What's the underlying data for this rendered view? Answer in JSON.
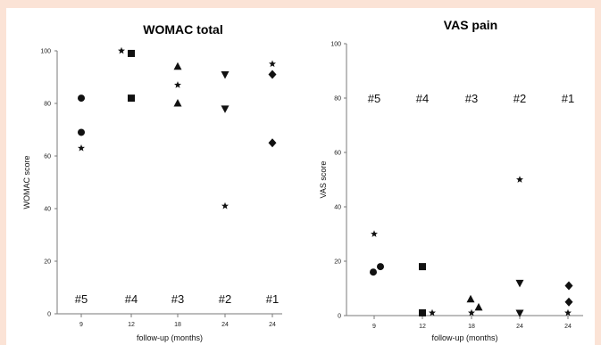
{
  "colors": {
    "border": "#fbe3d6",
    "panel": "#ffffff",
    "axis": "#7a7a7a",
    "marker": "#111111"
  },
  "chart_data": [
    {
      "type": "scatter",
      "title": "WOMAC  total",
      "xlabel": "follow-up (months)",
      "ylabel": "WOMAC score",
      "categories": [
        "9",
        "12",
        "18",
        "24",
        "24"
      ],
      "ylim": [
        0,
        100
      ],
      "yticks": [
        0,
        20,
        40,
        60,
        80,
        100
      ],
      "grid": false,
      "case_labels": [
        "#5",
        "#4",
        "#3",
        "#2",
        "#1"
      ],
      "series": [
        {
          "marker": "circle",
          "points": [
            {
              "x": "9",
              "y": 82
            },
            {
              "x": "9",
              "y": 69
            }
          ]
        },
        {
          "marker": "star",
          "points": [
            {
              "x": "9",
              "y": 63
            },
            {
              "x": "12",
              "y": 100
            },
            {
              "x": "18",
              "y": 87
            },
            {
              "x": "24",
              "y": 41
            },
            {
              "x": "24",
              "y": 95
            }
          ]
        },
        {
          "marker": "square",
          "points": [
            {
              "x": "12",
              "y": 99
            },
            {
              "x": "12",
              "y": 82
            }
          ]
        },
        {
          "marker": "triangle-up",
          "points": [
            {
              "x": "18",
              "y": 94
            },
            {
              "x": "18",
              "y": 80
            }
          ]
        },
        {
          "marker": "triangle-down",
          "points": [
            {
              "x": "24",
              "y": 91
            },
            {
              "x": "24",
              "y": 78
            }
          ]
        },
        {
          "marker": "diamond",
          "points": [
            {
              "x": "24",
              "y": 91
            },
            {
              "x": "24",
              "y": 65
            }
          ]
        }
      ]
    },
    {
      "type": "scatter",
      "title": "VAS pain",
      "xlabel": "follow-up (months)",
      "ylabel": "VAS score",
      "categories": [
        "9",
        "12",
        "18",
        "24",
        "24"
      ],
      "ylim": [
        0,
        100
      ],
      "yticks": [
        0,
        20,
        40,
        60,
        80,
        100
      ],
      "grid": false,
      "case_labels": [
        "#5",
        "#4",
        "#3",
        "#2",
        "#1"
      ],
      "series": [
        {
          "marker": "circle",
          "points": [
            {
              "x": "9",
              "y": 16
            },
            {
              "x": "9",
              "y": 18
            }
          ]
        },
        {
          "marker": "star",
          "points": [
            {
              "x": "9",
              "y": 30
            },
            {
              "x": "12",
              "y": 1
            },
            {
              "x": "18",
              "y": 1
            },
            {
              "x": "24",
              "y": 50
            },
            {
              "x": "24",
              "y": 1
            }
          ]
        },
        {
          "marker": "square",
          "points": [
            {
              "x": "12",
              "y": 18
            },
            {
              "x": "12",
              "y": 1
            }
          ]
        },
        {
          "marker": "triangle-up",
          "points": [
            {
              "x": "18",
              "y": 6
            },
            {
              "x": "18",
              "y": 3
            }
          ]
        },
        {
          "marker": "triangle-down",
          "points": [
            {
              "x": "24",
              "y": 12
            },
            {
              "x": "24",
              "y": 1
            }
          ]
        },
        {
          "marker": "diamond",
          "points": [
            {
              "x": "24",
              "y": 11
            },
            {
              "x": "24",
              "y": 5
            }
          ]
        }
      ]
    }
  ]
}
